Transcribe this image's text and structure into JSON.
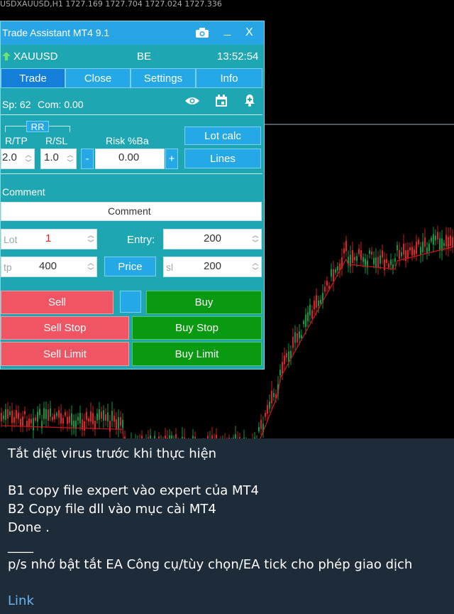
{
  "chart": {
    "header_text": "USDXAUUSD,H1 1727.169 1727.704 1727.024 1727.336"
  },
  "panel": {
    "title": "Trade Assistant MT4 9.1",
    "symbol": "XAUUSD",
    "be_label": "BE",
    "time": "13:52:54",
    "tabs": [
      "Trade",
      "Close",
      "Settings",
      "Info"
    ],
    "spread": "Sp: 62",
    "commission": "Com: 0.00",
    "rr_label": "RR",
    "rtp_label": "R/TP",
    "rsl_label": "R/SL",
    "risk_label": "Risk %Ba",
    "rtp_value": "2.0",
    "rsl_value": "1.0",
    "risk_value": "0.00",
    "minus": "-",
    "plus": "+",
    "lot_calc": "Lot calc",
    "lines": "Lines",
    "comment_label": "Comment",
    "comment_value": "Comment",
    "lot_label": "Lot",
    "lot_value": "1",
    "entry_label": "Entry:",
    "entry_value": "200",
    "tp_label": "tp",
    "tp_value": "400",
    "price_btn": "Price",
    "sl_label": "sl",
    "sl_value": "200",
    "sell": "Sell",
    "buy": "Buy",
    "sell_stop": "Sell Stop",
    "buy_stop": "Buy Stop",
    "sell_limit": "Sell Limit",
    "buy_limit": "Buy Limit",
    "colors": {
      "sell": "#ef5562",
      "buy": "#0a9a12",
      "panel": "#1ea7b2",
      "accent": "#24a9e6"
    }
  },
  "message": {
    "line1": "Tắt diệt virus trước khi thực hiện",
    "line2": "B1 copy file expert vào expert  của MT4",
    "line3": "B2 Copy file dll vào mục cài MT4",
    "line4": "Done .",
    "line5": "____",
    "line6": "p/s nhớ bật tắt EA Công cụ/tùy chọn/EA tick cho phép giao dịch",
    "link": "Link"
  }
}
